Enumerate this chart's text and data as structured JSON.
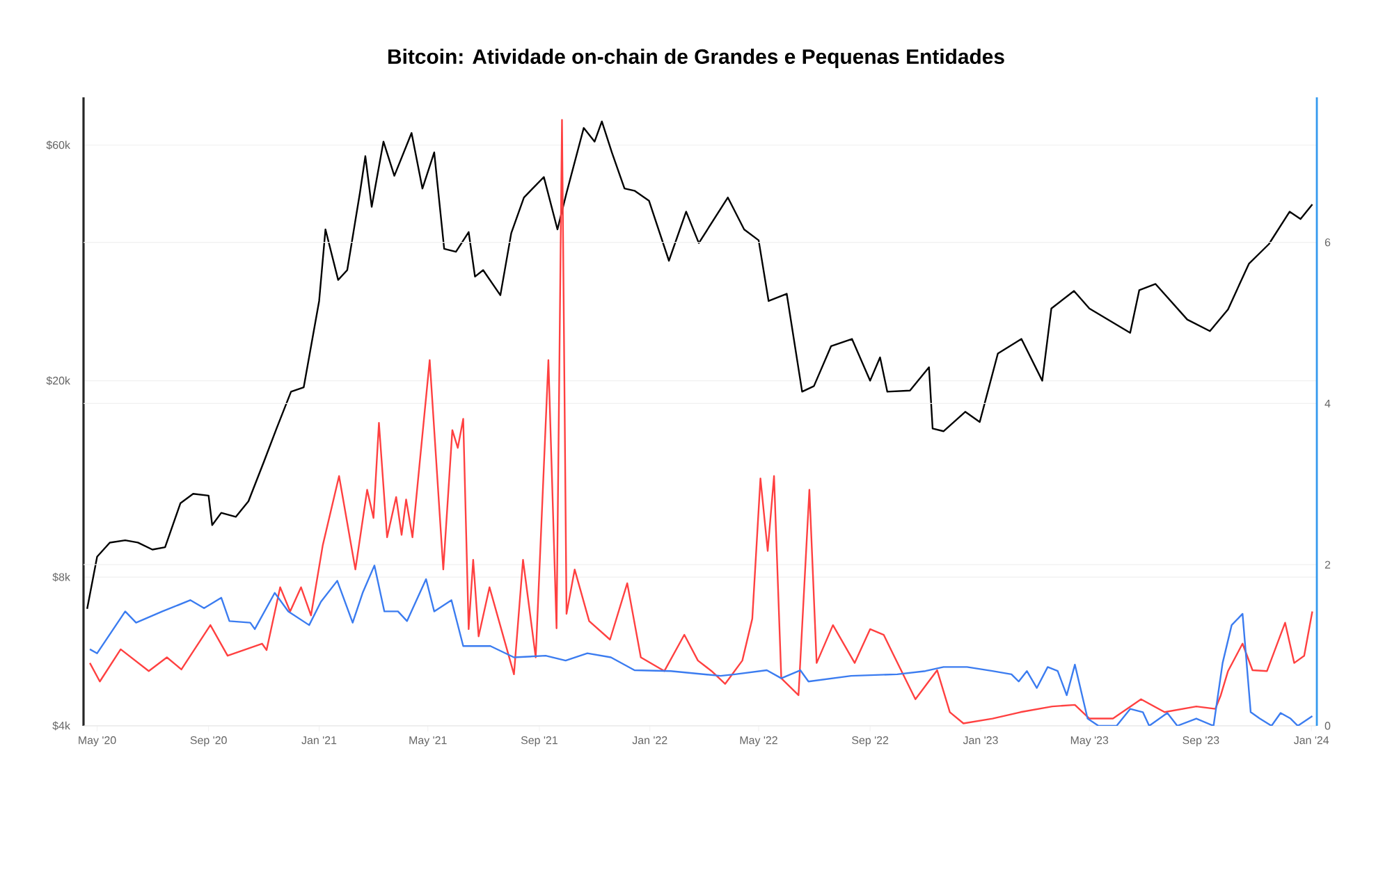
{
  "chart_data": {
    "type": "line",
    "title": "Bitcoin: Atividade on-chain de Grandes e Pequenas Entidades",
    "xlim": [
      "2020-04-16",
      "2024-01-07"
    ],
    "xticks": [
      {
        "value": "2020-05-01",
        "label": "May '20"
      },
      {
        "value": "2020-09-01",
        "label": "Sep '20"
      },
      {
        "value": "2021-01-01",
        "label": "Jan '21"
      },
      {
        "value": "2021-05-01",
        "label": "May '21"
      },
      {
        "value": "2021-09-01",
        "label": "Sep '21"
      },
      {
        "value": "2022-01-01",
        "label": "Jan '22"
      },
      {
        "value": "2022-05-01",
        "label": "May '22"
      },
      {
        "value": "2022-09-01",
        "label": "Sep '22"
      },
      {
        "value": "2023-01-01",
        "label": "Jan '23"
      },
      {
        "value": "2023-05-01",
        "label": "May '23"
      },
      {
        "value": "2023-09-01",
        "label": "Sep '23"
      },
      {
        "value": "2024-01-01",
        "label": "Jan '24"
      }
    ],
    "ylim": [
      4000,
      75000
    ],
    "yticks": [
      {
        "value": 4000,
        "label": "$4k"
      },
      {
        "value": 8000,
        "label": "$8k"
      },
      {
        "value": 20000,
        "label": "$20k"
      },
      {
        "value": 60000,
        "label": "$60k"
      }
    ],
    "log": "y",
    "y2lim": [
      0,
      7.8
    ],
    "y2ticks": [
      0,
      2,
      4,
      6
    ],
    "grid": "y",
    "series": [
      {
        "color": "#000000",
        "x": [
          "2020-04-20",
          "2020-05-01",
          "2020-05-15",
          "2020-06-01",
          "2020-06-15",
          "2020-07-01",
          "2020-07-15",
          "2020-08-01",
          "2020-08-15",
          "2020-09-01",
          "2020-09-05",
          "2020-09-15",
          "2020-10-01",
          "2020-10-15",
          "2020-11-01",
          "2020-11-15",
          "2020-12-01",
          "2020-12-15",
          "2021-01-01",
          "2021-01-08",
          "2021-01-22",
          "2021-02-01",
          "2021-02-15",
          "2021-02-21",
          "2021-02-28",
          "2021-03-13",
          "2021-03-25",
          "2021-04-13",
          "2021-04-25",
          "2021-05-08",
          "2021-05-19",
          "2021-06-01",
          "2021-06-15",
          "2021-06-22",
          "2021-07-01",
          "2021-07-20",
          "2021-08-01",
          "2021-08-15",
          "2021-09-06",
          "2021-09-21",
          "2021-10-01",
          "2021-10-20",
          "2021-11-01",
          "2021-11-09",
          "2021-11-20",
          "2021-12-04",
          "2021-12-15",
          "2021-12-31",
          "2022-01-22",
          "2022-02-10",
          "2022-02-24",
          "2022-03-28",
          "2022-04-15",
          "2022-05-01",
          "2022-05-12",
          "2022-06-01",
          "2022-06-18",
          "2022-07-01",
          "2022-07-20",
          "2022-08-12",
          "2022-09-01",
          "2022-09-12",
          "2022-09-20",
          "2022-10-15",
          "2022-11-05",
          "2022-11-09",
          "2022-11-21",
          "2022-12-15",
          "2022-12-31",
          "2023-01-20",
          "2023-02-15",
          "2023-03-10",
          "2023-03-20",
          "2023-04-14",
          "2023-05-01",
          "2023-06-15",
          "2023-06-25",
          "2023-07-13",
          "2023-08-17",
          "2023-09-11",
          "2023-10-01",
          "2023-10-24",
          "2023-11-15",
          "2023-12-08",
          "2023-12-20",
          "2024-01-02"
        ],
        "values": [
          6900,
          8800,
          9400,
          9500,
          9400,
          9100,
          9200,
          11300,
          11800,
          11700,
          10200,
          10800,
          10600,
          11400,
          13700,
          16000,
          19000,
          19400,
          29000,
          40500,
          32000,
          33500,
          48000,
          57000,
          45000,
          61000,
          52000,
          63500,
          49000,
          58000,
          37000,
          36500,
          40000,
          32500,
          33500,
          29800,
          39800,
          47000,
          51700,
          40500,
          48000,
          65000,
          61000,
          67000,
          58000,
          49000,
          48500,
          46300,
          35000,
          44000,
          38000,
          47000,
          40500,
          38500,
          29000,
          30000,
          19000,
          19500,
          23500,
          24300,
          20000,
          22300,
          19000,
          19100,
          21300,
          16000,
          15800,
          17300,
          16500,
          22700,
          24300,
          20000,
          28000,
          30400,
          28000,
          25000,
          30500,
          31400,
          26600,
          25200,
          27900,
          34500,
          37800,
          44000,
          42500,
          45500
        ]
      },
      {
        "color": "#ff4040",
        "axis": "y2",
        "x": [
          "2020-04-23",
          "2020-05-04",
          "2020-05-27",
          "2020-06-27",
          "2020-07-17",
          "2020-08-02",
          "2020-09-03",
          "2020-09-22",
          "2020-10-30",
          "2020-11-04",
          "2020-11-19",
          "2020-11-30",
          "2020-12-12",
          "2020-12-23",
          "2021-01-05",
          "2021-01-23",
          "2021-02-10",
          "2021-02-23",
          "2021-03-02",
          "2021-03-08",
          "2021-03-17",
          "2021-03-27",
          "2021-04-02",
          "2021-04-07",
          "2021-04-14",
          "2021-05-03",
          "2021-05-18",
          "2021-05-28",
          "2021-06-03",
          "2021-06-09",
          "2021-06-15",
          "2021-06-20",
          "2021-06-26",
          "2021-07-08",
          "2021-08-04",
          "2021-08-14",
          "2021-08-28",
          "2021-09-11",
          "2021-09-20",
          "2021-09-26",
          "2021-10-01",
          "2021-10-10",
          "2021-10-26",
          "2021-11-18",
          "2021-12-07",
          "2021-12-22",
          "2022-01-17",
          "2022-02-08",
          "2022-02-23",
          "2022-03-10",
          "2022-03-25",
          "2022-04-13",
          "2022-04-24",
          "2022-05-03",
          "2022-05-11",
          "2022-05-18",
          "2022-05-26",
          "2022-06-14",
          "2022-06-26",
          "2022-07-04",
          "2022-07-22",
          "2022-08-15",
          "2022-09-01",
          "2022-09-16",
          "2022-09-26",
          "2022-10-21",
          "2022-11-14",
          "2022-11-28",
          "2022-12-13",
          "2023-01-14",
          "2023-02-14",
          "2023-03-21",
          "2023-04-15",
          "2023-05-01",
          "2023-05-27",
          "2023-06-27",
          "2023-07-23",
          "2023-08-27",
          "2023-09-17",
          "2023-09-23",
          "2023-10-01",
          "2023-10-17",
          "2023-10-28",
          "2023-11-13",
          "2023-12-03",
          "2023-12-13",
          "2023-12-24",
          "2024-01-02"
        ],
        "values": [
          0.78,
          0.55,
          0.95,
          0.68,
          0.85,
          0.7,
          1.25,
          0.87,
          1.02,
          0.94,
          1.72,
          1.42,
          1.72,
          1.37,
          2.24,
          3.1,
          1.94,
          2.93,
          2.58,
          3.76,
          2.34,
          2.84,
          2.37,
          2.81,
          2.34,
          4.54,
          1.94,
          3.67,
          3.45,
          3.81,
          1.2,
          2.06,
          1.11,
          1.72,
          0.64,
          2.06,
          0.85,
          4.54,
          1.21,
          7.52,
          1.39,
          1.94,
          1.3,
          1.07,
          1.77,
          0.85,
          0.68,
          1.13,
          0.81,
          0.68,
          0.52,
          0.81,
          1.33,
          3.07,
          2.17,
          3.1,
          0.59,
          0.38,
          2.93,
          0.78,
          1.25,
          0.78,
          1.2,
          1.13,
          0.9,
          0.33,
          0.69,
          0.17,
          0.03,
          0.09,
          0.17,
          0.24,
          0.26,
          0.09,
          0.09,
          0.33,
          0.17,
          0.24,
          0.21,
          0.38,
          0.68,
          1.02,
          0.69,
          0.68,
          1.28,
          0.78,
          0.87,
          1.42
        ]
      },
      {
        "color": "#3b7cf0",
        "axis": "y2",
        "x": [
          "2020-04-23",
          "2020-05-01",
          "2020-06-01",
          "2020-06-13",
          "2020-07-12",
          "2020-08-12",
          "2020-08-27",
          "2020-09-15",
          "2020-09-24",
          "2020-10-17",
          "2020-10-22",
          "2020-11-13",
          "2020-11-28",
          "2020-12-21",
          "2021-01-03",
          "2021-01-21",
          "2021-02-07",
          "2021-02-18",
          "2021-03-03",
          "2021-03-14",
          "2021-03-29",
          "2021-04-08",
          "2021-04-29",
          "2021-05-08",
          "2021-05-27",
          "2021-06-09",
          "2021-07-09",
          "2021-08-04",
          "2021-09-08",
          "2021-09-30",
          "2021-10-24",
          "2021-11-19",
          "2021-12-15",
          "2022-01-24",
          "2022-03-20",
          "2022-04-05",
          "2022-05-10",
          "2022-05-26",
          "2022-06-16",
          "2022-06-25",
          "2022-08-11",
          "2022-10-01",
          "2022-11-01",
          "2022-11-21",
          "2022-12-17",
          "2023-01-14",
          "2023-02-04",
          "2023-02-12",
          "2023-02-21",
          "2023-03-04",
          "2023-03-16",
          "2023-03-27",
          "2023-04-06",
          "2023-04-15",
          "2023-04-29",
          "2023-05-11",
          "2023-05-31",
          "2023-06-15",
          "2023-06-29",
          "2023-07-06",
          "2023-07-26",
          "2023-08-06",
          "2023-08-27",
          "2023-09-15",
          "2023-09-25",
          "2023-10-05",
          "2023-10-17",
          "2023-10-26",
          "2023-11-05",
          "2023-11-18",
          "2023-11-28",
          "2023-12-09",
          "2023-12-17",
          "2024-01-02"
        ],
        "values": [
          0.95,
          0.9,
          1.42,
          1.28,
          1.42,
          1.56,
          1.46,
          1.59,
          1.3,
          1.28,
          1.2,
          1.65,
          1.42,
          1.25,
          1.54,
          1.8,
          1.28,
          1.65,
          1.99,
          1.42,
          1.42,
          1.3,
          1.82,
          1.42,
          1.56,
          0.99,
          0.99,
          0.85,
          0.87,
          0.81,
          0.9,
          0.85,
          0.69,
          0.68,
          0.62,
          0.64,
          0.69,
          0.59,
          0.69,
          0.55,
          0.62,
          0.64,
          0.68,
          0.73,
          0.73,
          0.68,
          0.64,
          0.55,
          0.68,
          0.47,
          0.73,
          0.68,
          0.38,
          0.76,
          0.09,
          0,
          0,
          0.21,
          0.17,
          0,
          0.16,
          0,
          0.09,
          0,
          0.78,
          1.25,
          1.39,
          0.17,
          0.09,
          0,
          0.16,
          0.09,
          0,
          0.12
        ]
      }
    ]
  }
}
